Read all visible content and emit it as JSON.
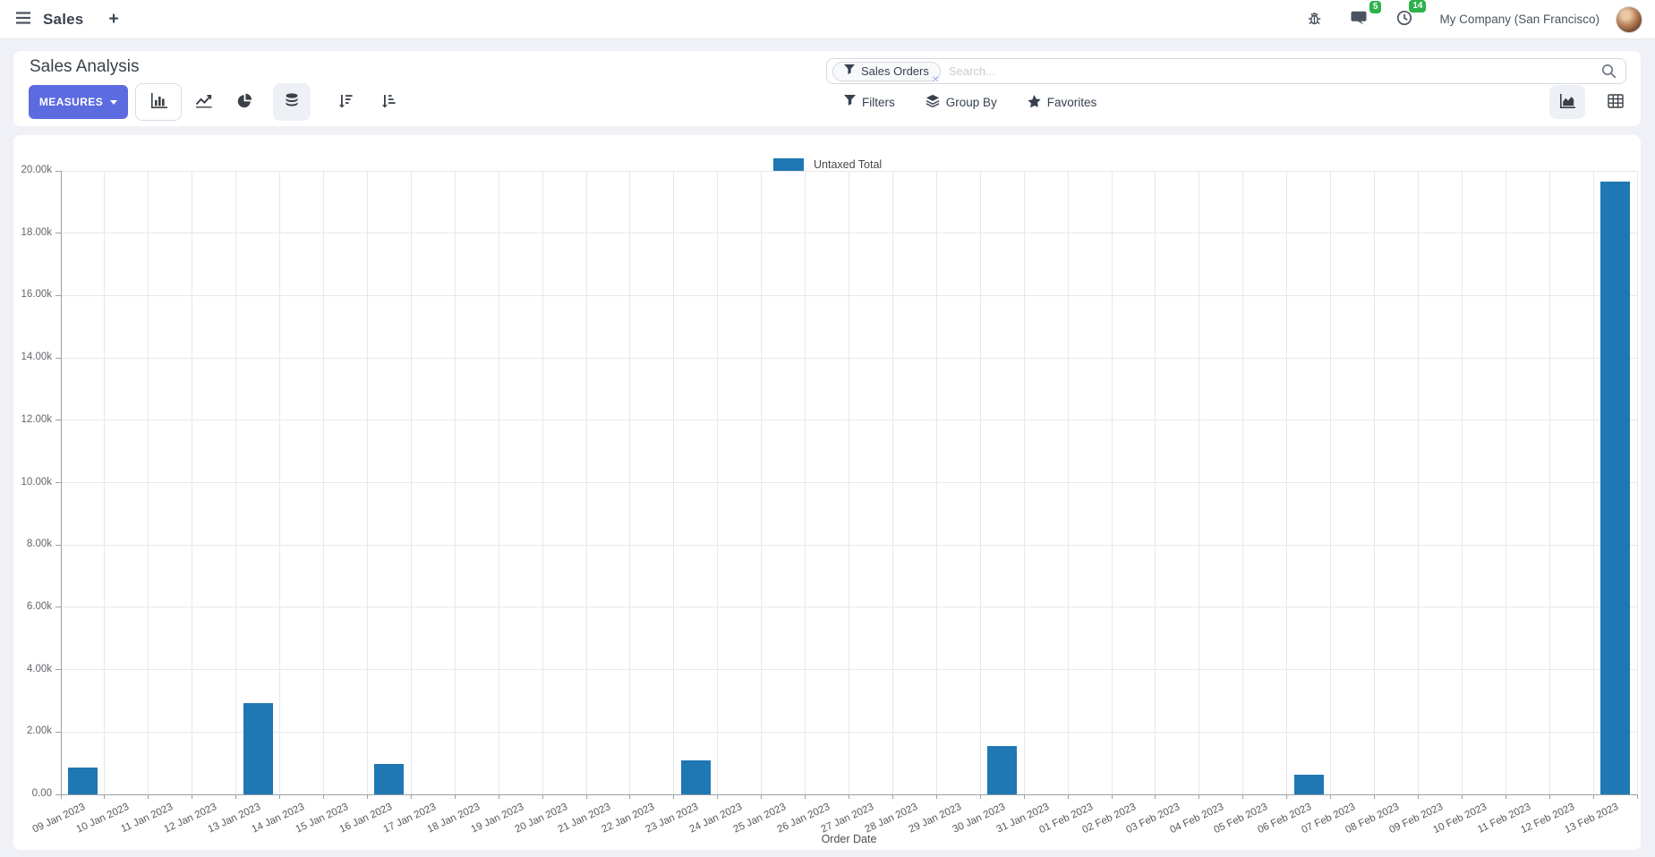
{
  "colors": {
    "primary_button": "#5C6BE0",
    "badge_green": "#2CB14A",
    "bar_blue": "#1F77B4"
  },
  "navbar": {
    "app_name": "Sales",
    "new_tab": "+",
    "chat_badge": "5",
    "activity_badge": "14",
    "company": "My Company (San Francisco)"
  },
  "control_panel": {
    "title": "Sales Analysis",
    "measures_button": "MEASURES",
    "search": {
      "facet_label": "Sales Orders",
      "placeholder": "Search...",
      "remove_facet": "×"
    },
    "filters_label": "Filters",
    "group_by_label": "Group By",
    "favorites_label": "Favorites"
  },
  "chart_data": {
    "type": "bar",
    "title": "",
    "xlabel": "Order Date",
    "ylabel": "",
    "ylim": [
      0,
      20000
    ],
    "ytick_step": 2000,
    "ytick_labels": [
      "0.00",
      "2.00k",
      "4.00k",
      "6.00k",
      "8.00k",
      "10.00k",
      "12.00k",
      "14.00k",
      "16.00k",
      "18.00k",
      "20.00k"
    ],
    "grid": true,
    "legend_position": "top",
    "legend": [
      {
        "label": "Untaxed Total",
        "color": "#1F77B4"
      }
    ],
    "categories": [
      "09 Jan 2023",
      "10 Jan 2023",
      "11 Jan 2023",
      "12 Jan 2023",
      "13 Jan 2023",
      "14 Jan 2023",
      "15 Jan 2023",
      "16 Jan 2023",
      "17 Jan 2023",
      "18 Jan 2023",
      "19 Jan 2023",
      "20 Jan 2023",
      "21 Jan 2023",
      "22 Jan 2023",
      "23 Jan 2023",
      "24 Jan 2023",
      "25 Jan 2023",
      "26 Jan 2023",
      "27 Jan 2023",
      "28 Jan 2023",
      "29 Jan 2023",
      "30 Jan 2023",
      "31 Jan 2023",
      "01 Feb 2023",
      "02 Feb 2023",
      "03 Feb 2023",
      "04 Feb 2023",
      "05 Feb 2023",
      "06 Feb 2023",
      "07 Feb 2023",
      "08 Feb 2023",
      "09 Feb 2023",
      "10 Feb 2023",
      "11 Feb 2023",
      "12 Feb 2023",
      "13 Feb 2023"
    ],
    "series": [
      {
        "name": "Untaxed Total",
        "color": "#1F77B4",
        "values": [
          860,
          0,
          0,
          0,
          2930,
          0,
          0,
          975,
          0,
          0,
          0,
          0,
          0,
          0,
          1090,
          0,
          0,
          0,
          0,
          0,
          0,
          1550,
          0,
          0,
          0,
          0,
          0,
          0,
          630,
          0,
          0,
          0,
          0,
          0,
          0,
          19660
        ]
      }
    ]
  }
}
